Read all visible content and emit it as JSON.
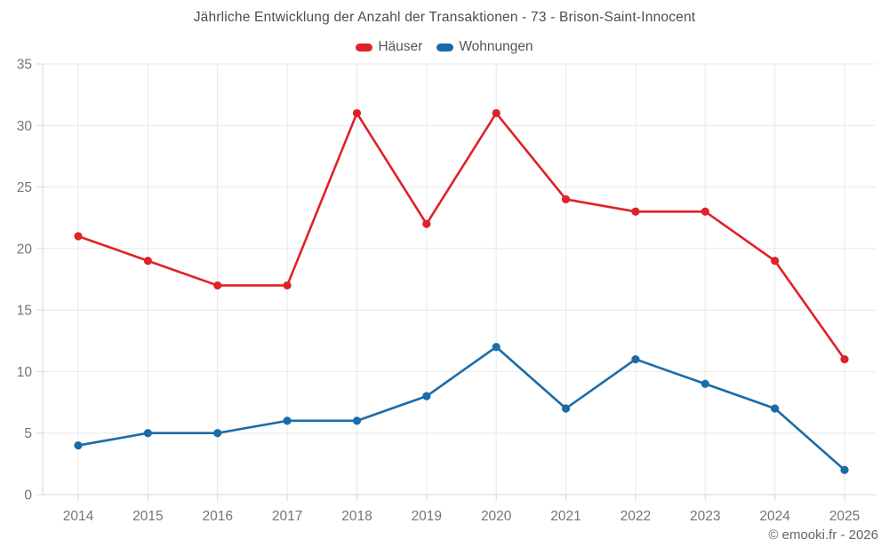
{
  "header": {
    "title": "Jährliche Entwicklung der Anzahl der Transaktionen - 73 - Brison-Saint-Innocent"
  },
  "legend": {
    "items": [
      {
        "label": "Häuser",
        "color": "#e02128"
      },
      {
        "label": "Wohnungen",
        "color": "#1a6ca8"
      }
    ]
  },
  "footer": {
    "copyright": "© emooki.fr - 2026"
  },
  "chart_data": {
    "type": "line",
    "title": "Jährliche Entwicklung der Anzahl der Transaktionen - 73 - Brison-Saint-Innocent",
    "categories": [
      "2014",
      "2015",
      "2016",
      "2017",
      "2018",
      "2019",
      "2020",
      "2021",
      "2022",
      "2023",
      "2024",
      "2025"
    ],
    "series": [
      {
        "name": "Häuser",
        "color": "#e02128",
        "values": [
          21,
          19,
          17,
          17,
          31,
          22,
          31,
          24,
          23,
          23,
          19,
          11
        ]
      },
      {
        "name": "Wohnungen",
        "color": "#1a6ca8",
        "values": [
          4,
          5,
          5,
          6,
          6,
          8,
          12,
          7,
          11,
          9,
          7,
          2
        ]
      }
    ],
    "xlabel": "",
    "ylabel": "",
    "ylim": [
      0,
      35
    ],
    "ytick_step": 5,
    "grid": true,
    "legend_position": "top",
    "tick_label_color": "#757575",
    "grid_color": "#e8e8e8",
    "axis_color": "#d4d4d4"
  }
}
